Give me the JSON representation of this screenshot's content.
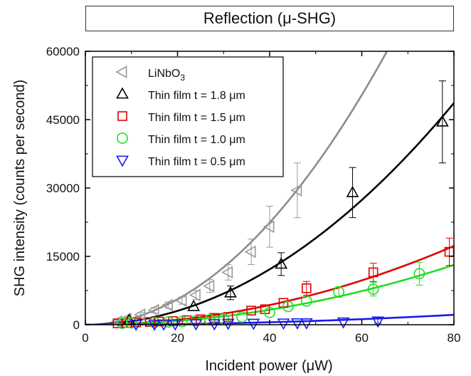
{
  "chart_data": {
    "type": "scatter",
    "title": "Reflection (μ-SHG)",
    "xlabel": "Incident power (μW)",
    "ylabel": "SHG intensity (counts per second)",
    "xlim": [
      0,
      80
    ],
    "ylim": [
      0,
      60000
    ],
    "x_ticks": [
      "0",
      "20",
      "40",
      "60",
      "80"
    ],
    "y_ticks": [
      "0",
      "15000",
      "30000",
      "45000",
      "60000"
    ],
    "legend_position": "top-left",
    "series": [
      {
        "name": "LiNbO",
        "name_sub": "3",
        "marker": "triangle-left",
        "color": "#999999",
        "fit_color": "#8c8c8c",
        "fit_k": 14.0,
        "x": [
          7,
          9,
          12,
          15,
          18,
          21,
          24,
          27,
          31,
          36,
          40,
          46
        ],
        "y": [
          700,
          1300,
          2200,
          3200,
          4300,
          5300,
          6500,
          8500,
          11500,
          16000,
          21500,
          29500
        ],
        "err": [
          300,
          400,
          500,
          600,
          700,
          800,
          1000,
          1400,
          1700,
          2800,
          4500,
          6000
        ]
      },
      {
        "name": "Thin film t = 1.8 μm",
        "marker": "triangle-up",
        "color": "#000000",
        "fit_color": "#000000",
        "fit_k": 7.6,
        "x": [
          9.5,
          23.5,
          31.5,
          42.5,
          58,
          77.5
        ],
        "y": [
          1000,
          4000,
          7000,
          13300,
          29000,
          44500
        ],
        "err": [
          0,
          0,
          1500,
          2500,
          5500,
          9000
        ]
      },
      {
        "name": "Thin film t = 1.5 μm",
        "marker": "square",
        "color": "#e00000",
        "fit_color": "#e00000",
        "fit_k": 2.7,
        "x": [
          7,
          9,
          11,
          14,
          16,
          19,
          22,
          25,
          28,
          31,
          36,
          39,
          43,
          48,
          62.5,
          79
        ],
        "y": [
          300,
          400,
          500,
          600,
          700,
          800,
          1000,
          1200,
          1500,
          1700,
          3100,
          3400,
          4800,
          8000,
          11500,
          16000
        ],
        "err": [
          0,
          0,
          0,
          0,
          0,
          0,
          0,
          0,
          0,
          0,
          0,
          0,
          0,
          1500,
          2000,
          3000
        ]
      },
      {
        "name": "Thin film t = 1.0 μm",
        "marker": "circle",
        "color": "#22dd22",
        "fit_color": "#22dd22",
        "fit_k": 2.05,
        "x": [
          8,
          10,
          15,
          18,
          21,
          24,
          27,
          30,
          34,
          40,
          44,
          48,
          55,
          62.5,
          72.5
        ],
        "y": [
          300,
          400,
          500,
          600,
          700,
          900,
          1100,
          1300,
          1700,
          2700,
          4000,
          5200,
          7200,
          7800,
          11200
        ],
        "err": [
          0,
          0,
          0,
          0,
          0,
          0,
          0,
          0,
          0,
          0,
          0,
          0,
          1200,
          1500,
          2500
        ]
      },
      {
        "name": "Thin film t = 0.5 μm",
        "marker": "triangle-down",
        "color": "#1a1aee",
        "fit_color": "#1a1aee",
        "fit_k": 0.34,
        "x": [
          11,
          15,
          17,
          19.5,
          24,
          28,
          31,
          36.5,
          43,
          46,
          48,
          56,
          63.5
        ],
        "y": [
          100,
          100,
          150,
          150,
          200,
          200,
          300,
          300,
          350,
          400,
          400,
          600,
          800
        ],
        "err": [
          0,
          0,
          0,
          0,
          0,
          0,
          0,
          0,
          0,
          0,
          0,
          0,
          500
        ]
      }
    ]
  }
}
